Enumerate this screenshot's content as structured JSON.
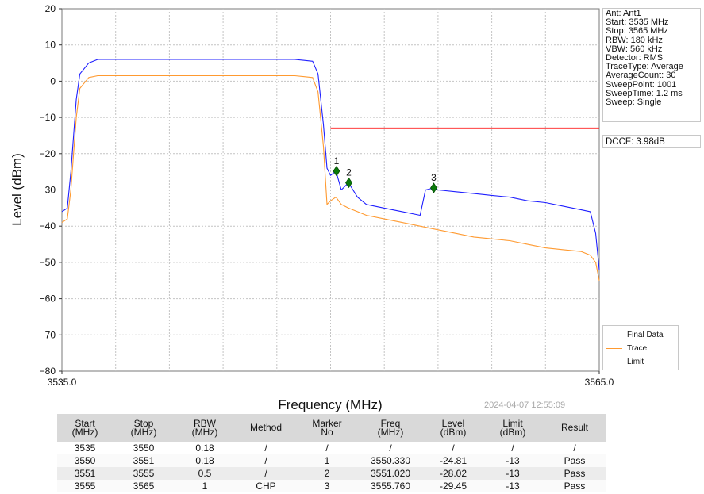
{
  "chart_data": {
    "type": "line",
    "xlabel": "Frequency (MHz)",
    "ylabel": "Level (dBm)",
    "xlim": [
      3535.0,
      3565.0
    ],
    "ylim": [
      -80,
      20
    ],
    "x_ticks": [
      "3535.0",
      "3565.0"
    ],
    "y_ticks": [
      20,
      10,
      0,
      -10,
      -20,
      -30,
      -40,
      -50,
      -60,
      -70,
      -80
    ],
    "grid": true,
    "legend_placement": "bottom-right",
    "series": [
      {
        "name": "Final Data",
        "color": "#2020ff",
        "x": [
          3535.0,
          3535.3,
          3535.5,
          3535.8,
          3536.0,
          3536.5,
          3537.0,
          3538.0,
          3540.0,
          3542.0,
          3544.0,
          3546.0,
          3548.0,
          3549.0,
          3549.3,
          3549.6,
          3549.8,
          3550.0,
          3550.3,
          3550.6,
          3551.0,
          3551.5,
          3552.0,
          3553.0,
          3554.0,
          3555.0,
          3555.3,
          3555.76,
          3556.0,
          3557.0,
          3558.0,
          3559.0,
          3560.0,
          3561.0,
          3562.0,
          3563.0,
          3564.0,
          3564.5,
          3564.8,
          3565.0
        ],
        "y": [
          -36,
          -35,
          -25,
          -5,
          2,
          5,
          6,
          6,
          6,
          6,
          6,
          6,
          6,
          5.5,
          2,
          -12,
          -24,
          -26,
          -24.81,
          -30,
          -28.02,
          -32,
          -34,
          -35,
          -36,
          -37,
          -30,
          -29.45,
          -30,
          -30.5,
          -31,
          -31.5,
          -32,
          -33,
          -33.5,
          -34.5,
          -35.5,
          -36,
          -42,
          -52
        ]
      },
      {
        "name": "Trace",
        "color": "#ff9a30",
        "x": [
          3535.0,
          3535.3,
          3535.5,
          3535.8,
          3536.0,
          3536.5,
          3537.0,
          3538.0,
          3540.0,
          3542.0,
          3544.0,
          3546.0,
          3548.0,
          3549.0,
          3549.3,
          3549.6,
          3549.8,
          3550.0,
          3550.3,
          3550.6,
          3551.0,
          3551.5,
          3552.0,
          3553.0,
          3554.0,
          3555.0,
          3556.0,
          3557.0,
          3558.0,
          3559.0,
          3560.0,
          3561.0,
          3562.0,
          3563.0,
          3564.0,
          3564.5,
          3564.8,
          3565.0
        ],
        "y": [
          -39,
          -38,
          -30,
          -10,
          -2,
          1,
          1.5,
          1.5,
          1.5,
          1.5,
          1.5,
          1.5,
          1.5,
          1,
          -3,
          -18,
          -34,
          -33,
          -32,
          -34,
          -35,
          -36,
          -37,
          -38,
          -39,
          -40,
          -41,
          -42,
          -43,
          -43.5,
          -44,
          -45,
          -46,
          -46.5,
          -47,
          -48,
          -50,
          -55
        ]
      },
      {
        "name": "Limit",
        "color": "#ff2020",
        "x": [
          3550.0,
          3565.0
        ],
        "y": [
          -13,
          -13
        ]
      }
    ],
    "markers": [
      {
        "label": "1",
        "x": 3550.33,
        "y": -24.81
      },
      {
        "label": "2",
        "x": 3551.02,
        "y": -28.02
      },
      {
        "label": "3",
        "x": 3555.76,
        "y": -29.45
      }
    ]
  },
  "info_box": [
    "Ant: Ant1",
    "Start: 3535 MHz",
    "Stop: 3565 MHz",
    "RBW: 180 kHz",
    "VBW: 560 kHz",
    "Detector: RMS",
    "TraceType: Average",
    "AverageCount: 30",
    "SweepPoint: 1001",
    "SweepTime: 1.2 ms",
    "Sweep: Single"
  ],
  "dccf": "DCCF: 3.98dB",
  "timestamp": "2024-04-07 12:55:09",
  "table": {
    "headers": [
      "Start\n(MHz)",
      "Stop\n(MHz)",
      "RBW\n(MHz)",
      "Method",
      "Marker\nNo",
      "Freq\n(MHz)",
      "Level\n(dBm)",
      "Limit\n(dBm)",
      "Result"
    ],
    "rows": [
      [
        "3535",
        "3550",
        "0.18",
        "/",
        "/",
        "/",
        "/",
        "/",
        "/"
      ],
      [
        "3550",
        "3551",
        "0.18",
        "/",
        "1",
        "3550.330",
        "-24.81",
        "-13",
        "Pass"
      ],
      [
        "3551",
        "3555",
        "0.5",
        "/",
        "2",
        "3551.020",
        "-28.02",
        "-13",
        "Pass"
      ],
      [
        "3555",
        "3565",
        "1",
        "CHP",
        "3",
        "3555.760",
        "-29.45",
        "-13",
        "Pass"
      ]
    ]
  }
}
